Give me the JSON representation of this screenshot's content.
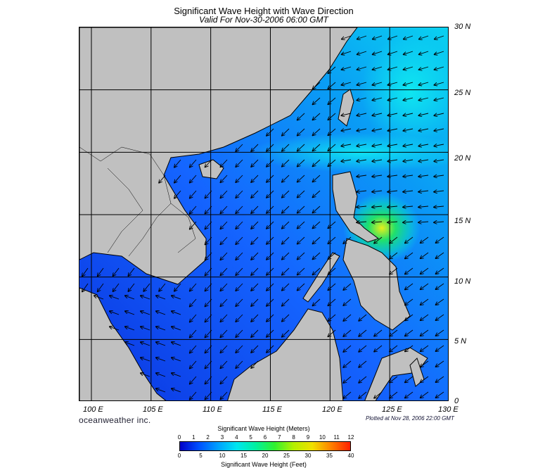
{
  "title": "Significant Wave Height with Wave Direction",
  "subtitle": "Valid For Nov-30-2006 06:00 GMT",
  "map": {
    "lon_range": [
      99,
      130
    ],
    "lat_range": [
      0,
      30
    ],
    "lat_labels": [
      "30 N",
      "25 N",
      "20 N",
      "15 N",
      "10 N",
      "5 N",
      "0"
    ],
    "lon_labels": [
      "100 E",
      "105 E",
      "110 E",
      "115 E",
      "120 E",
      "125 E",
      "130 E"
    ],
    "grid": true,
    "colors": {
      "land": "#c0c0c0",
      "coast": "#000000",
      "deep_blue": "#0a34e0",
      "mid_blue": "#1f6fff",
      "cyan": "#0ad2f0",
      "green": "#21e06a",
      "yellow": "#e8f01a",
      "grid": "#000000"
    }
  },
  "branding": "oceanweather inc.",
  "plotted": "Plotted at Nov 28, 2006 22:00 GMT",
  "colorbar": {
    "title_top": "Significant Wave Height (Meters)",
    "title_bottom": "Significant Wave Height (Feet)",
    "meters_ticks": [
      "0",
      "1",
      "2",
      "3",
      "4",
      "5",
      "6",
      "7",
      "8",
      "9",
      "10",
      "11",
      "12"
    ],
    "feet_ticks": [
      "0",
      "5",
      "10",
      "15",
      "20",
      "25",
      "30",
      "35",
      "40"
    ],
    "gradient": [
      "#0000c8",
      "#0050ff",
      "#00a0ff",
      "#00e6f0",
      "#00f0a0",
      "#30f030",
      "#b4f000",
      "#f0e000",
      "#ff8000",
      "#ff2000"
    ]
  }
}
